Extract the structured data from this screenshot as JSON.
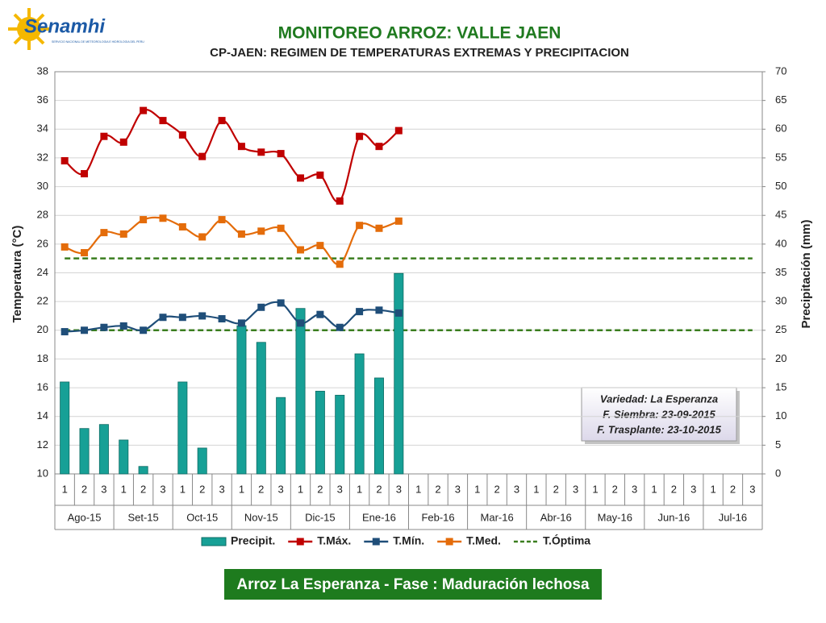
{
  "logo": {
    "name": "Senamhi",
    "subtitle": "SERVICIO NACIONAL DE METEOROLOGIA E HIDROLOGIA DEL PERU"
  },
  "chart_data": {
    "type": "combo",
    "title": "MONITOREO ARROZ: VALLE JAEN",
    "subtitle": "CP-JAEN: REGIMEN DE TEMPERATURAS EXTREMAS Y PRECIPITACION",
    "y_label": "Temperatura (°C)",
    "y2_label": "Precipitación (mm)",
    "categories": [
      "1",
      "2",
      "3",
      "1",
      "2",
      "3",
      "1",
      "2",
      "3",
      "1",
      "2",
      "3",
      "1",
      "2",
      "3",
      "1",
      "2",
      "3",
      "1",
      "2",
      "3",
      "1",
      "2",
      "3",
      "1",
      "2",
      "3",
      "1",
      "2",
      "3",
      "1",
      "2",
      "3",
      "1",
      "2",
      "3"
    ],
    "groups": [
      "Ago-15",
      "Set-15",
      "Oct-15",
      "Nov-15",
      "Dic-15",
      "Ene-16",
      "Feb-16",
      "Mar-16",
      "Abr-16",
      "May-16",
      "Jun-16",
      "Jul-16"
    ],
    "ylim": [
      10,
      38
    ],
    "yticks": [
      10,
      12,
      14,
      16,
      18,
      20,
      22,
      24,
      26,
      28,
      30,
      32,
      34,
      36,
      38
    ],
    "y2lim": [
      0,
      70
    ],
    "y2ticks": [
      0,
      5,
      10,
      15,
      20,
      25,
      30,
      35,
      40,
      45,
      50,
      55,
      60,
      65,
      70
    ],
    "grid": true,
    "series": [
      {
        "name": "Precipit.",
        "kind": "bar",
        "axis": "y2",
        "color": "#17a096",
        "values": [
          16.0,
          7.9,
          8.6,
          5.9,
          1.3,
          0,
          16.0,
          4.5,
          0,
          25.8,
          22.9,
          13.3,
          28.8,
          14.4,
          13.7,
          20.9,
          16.7,
          34.9,
          null,
          null,
          null,
          null,
          null,
          null,
          null,
          null,
          null,
          null,
          null,
          null,
          null,
          null,
          null,
          null,
          null,
          null
        ]
      },
      {
        "name": "T.Máx.",
        "kind": "line",
        "color": "#c00000",
        "values": [
          31.8,
          30.9,
          33.5,
          33.1,
          35.3,
          34.6,
          33.6,
          32.1,
          34.6,
          32.8,
          32.4,
          32.3,
          30.6,
          30.8,
          29.0,
          33.5,
          32.8,
          33.9,
          null,
          null,
          null,
          null,
          null,
          null,
          null,
          null,
          null,
          null,
          null,
          null,
          null,
          null,
          null,
          null,
          null,
          null
        ]
      },
      {
        "name": "T.Mín.",
        "kind": "line",
        "color": "#1f4e79",
        "values": [
          19.9,
          20.0,
          20.2,
          20.3,
          20.0,
          20.9,
          20.9,
          21.0,
          20.8,
          20.5,
          21.6,
          21.9,
          20.5,
          21.1,
          20.2,
          21.3,
          21.4,
          21.2,
          null,
          null,
          null,
          null,
          null,
          null,
          null,
          null,
          null,
          null,
          null,
          null,
          null,
          null,
          null,
          null,
          null,
          null
        ]
      },
      {
        "name": "T.Med.",
        "kind": "line",
        "color": "#e46c0a",
        "values": [
          25.8,
          25.4,
          26.8,
          26.7,
          27.7,
          27.8,
          27.2,
          26.5,
          27.7,
          26.7,
          26.9,
          27.1,
          25.6,
          25.9,
          24.6,
          27.3,
          27.1,
          27.6,
          null,
          null,
          null,
          null,
          null,
          null,
          null,
          null,
          null,
          null,
          null,
          null,
          null,
          null,
          null,
          null,
          null,
          null
        ]
      }
    ],
    "optimum": {
      "name": "T.Óptima",
      "color": "#3a7d1e",
      "values": [
        20,
        25
      ]
    },
    "annotation": [
      "Variedad: La Esperanza",
      "F. Siembra: 23-09-2015",
      "F. Trasplante: 23-10-2015"
    ]
  },
  "footer": "Arroz La Esperanza - Fase : Maduración lechosa"
}
